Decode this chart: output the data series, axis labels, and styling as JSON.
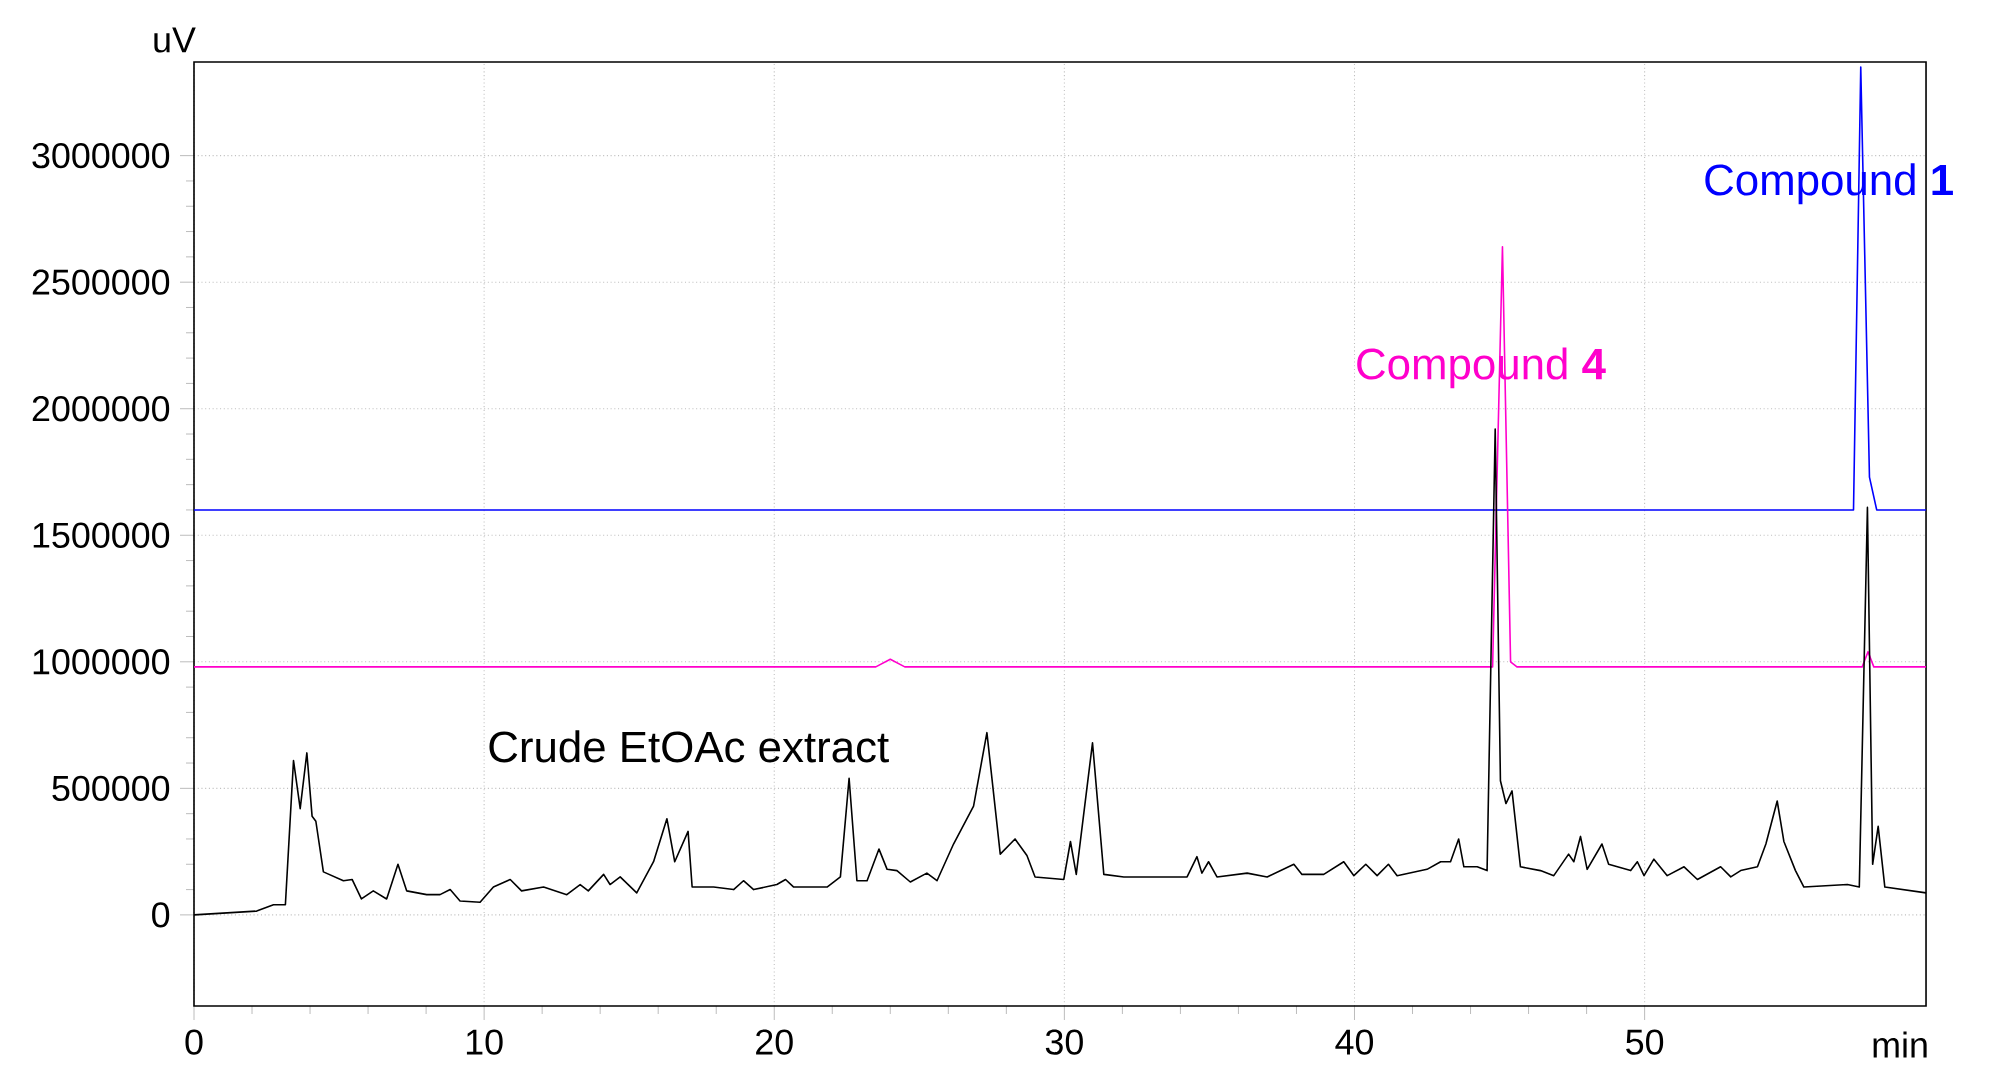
{
  "chart_data": {
    "type": "line",
    "xlabel": "min",
    "ylabel": "uV",
    "xlim": [
      0,
      59.7
    ],
    "ylim": [
      -360000,
      3370000
    ],
    "xticks": [
      0,
      10,
      20,
      30,
      40,
      50
    ],
    "yticks": [
      0,
      500000,
      1000000,
      1500000,
      2000000,
      2500000,
      3000000
    ],
    "grid": true,
    "legend": false,
    "marker": "none",
    "line_style": "solid",
    "series": [
      {
        "name": "Compound **1**",
        "color": "#0000ff",
        "x": [
          0,
          57.2,
          57.45,
          57.75,
          58.0,
          59.7
        ],
        "values": [
          1600000,
          1600000,
          3350000,
          1730000,
          1600000,
          1600000
        ]
      },
      {
        "name": "Compound **4**",
        "color": "#ff00cc",
        "x": [
          0,
          23.5,
          24.0,
          24.5,
          44.76,
          45.1,
          45.38,
          45.6,
          57.5,
          57.7,
          57.9,
          59.7
        ],
        "values": [
          980000,
          980000,
          1010000,
          980000,
          980000,
          2640000,
          1000000,
          980000,
          980000,
          1040000,
          980000,
          980000
        ]
      },
      {
        "name": "Crude EtOAc extract",
        "color": "#000000",
        "x": [
          0,
          2.16,
          2.74,
          3.15,
          3.43,
          3.66,
          3.89,
          4.07,
          4.2,
          4.46,
          5.15,
          5.45,
          5.77,
          6.18,
          6.64,
          7.03,
          7.33,
          8.02,
          8.48,
          8.83,
          9.17,
          9.86,
          10.32,
          10.9,
          11.29,
          12.05,
          12.85,
          13.31,
          13.59,
          14.12,
          14.34,
          14.69,
          15.26,
          15.84,
          16.3,
          16.57,
          17.03,
          17.17,
          17.91,
          18.6,
          18.94,
          19.29,
          20.09,
          20.39,
          20.67,
          21.82,
          22.28,
          22.58,
          22.85,
          23.2,
          23.61,
          23.89,
          24.23,
          24.69,
          25.26,
          25.61,
          26.18,
          26.87,
          27.33,
          27.79,
          28.3,
          28.71,
          28.99,
          29.98,
          30.21,
          30.41,
          30.97,
          31.36,
          32.05,
          34.23,
          34.57,
          34.74,
          34.97,
          35.26,
          36.3,
          36.99,
          37.91,
          38.19,
          38.94,
          39.63,
          39.98,
          40.39,
          40.78,
          41.17,
          41.47,
          42.5,
          42.97,
          43.31,
          43.59,
          43.77,
          44.23,
          44.57,
          44.85,
          45.03,
          45.22,
          45.43,
          45.72,
          46.41,
          46.87,
          47.38,
          47.56,
          47.79,
          48.02,
          48.53,
          48.76,
          49.52,
          49.75,
          49.98,
          50.32,
          50.78,
          51.36,
          51.82,
          52.62,
          52.97,
          53.31,
          53.89,
          54.18,
          54.57,
          54.8,
          55.2,
          55.49,
          56.99,
          57.4,
          57.68,
          57.86,
          58.05,
          58.28,
          59.7
        ],
        "values": [
          0,
          15000,
          40000,
          40000,
          610000,
          420000,
          640000,
          390000,
          370000,
          170000,
          135000,
          140000,
          63000,
          95000,
          63000,
          200000,
          95000,
          80000,
          80000,
          100000,
          55000,
          50000,
          110000,
          140000,
          95000,
          110000,
          80000,
          120000,
          95000,
          160000,
          120000,
          150000,
          87000,
          210000,
          380000,
          210000,
          330000,
          110000,
          110000,
          100000,
          135000,
          100000,
          120000,
          140000,
          110000,
          110000,
          150000,
          540000,
          135000,
          135000,
          260000,
          180000,
          175000,
          130000,
          165000,
          135000,
          280000,
          430000,
          720000,
          240000,
          300000,
          235000,
          150000,
          140000,
          290000,
          160000,
          680000,
          160000,
          150000,
          150000,
          230000,
          165000,
          210000,
          150000,
          165000,
          150000,
          200000,
          160000,
          160000,
          210000,
          155000,
          200000,
          155000,
          200000,
          155000,
          180000,
          210000,
          210000,
          300000,
          190000,
          190000,
          175000,
          1920000,
          530000,
          440000,
          490000,
          190000,
          175000,
          155000,
          240000,
          210000,
          310000,
          180000,
          280000,
          200000,
          175000,
          210000,
          155000,
          220000,
          155000,
          190000,
          140000,
          190000,
          150000,
          175000,
          190000,
          280000,
          450000,
          290000,
          175000,
          110000,
          120000,
          110000,
          1610000,
          200000,
          350000,
          110000,
          87000
        ]
      }
    ]
  }
}
